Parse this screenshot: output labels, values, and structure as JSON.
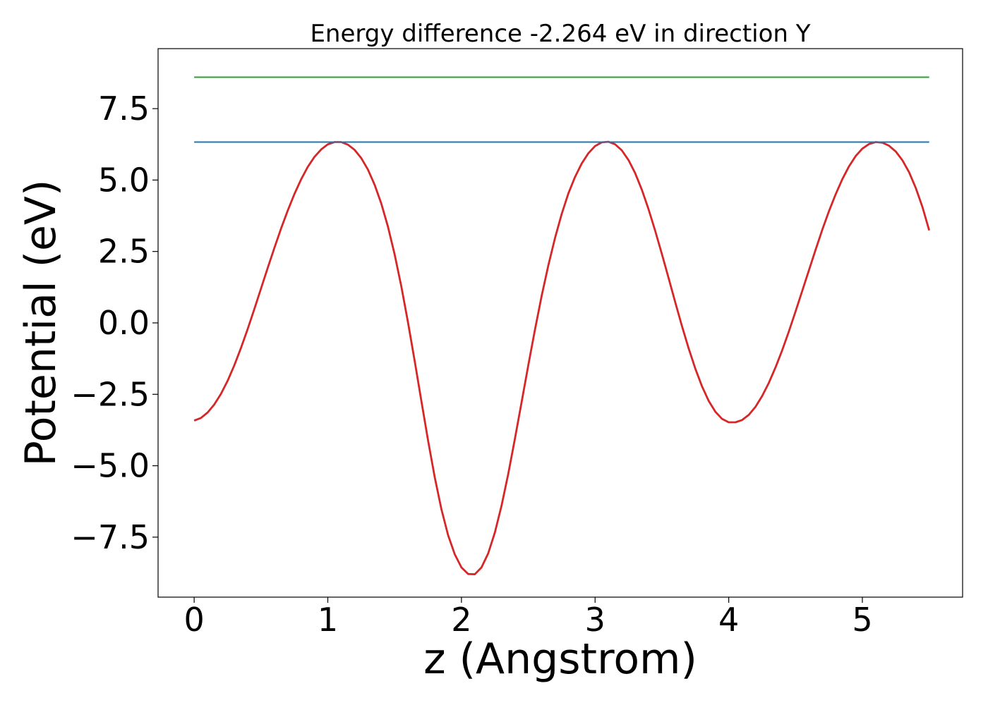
{
  "chart_data": {
    "type": "line",
    "title": "Energy difference -2.264 eV in direction Y",
    "xlabel": "z (Angstrom)",
    "ylabel": "Potential (eV)",
    "xlim": [
      -0.27,
      5.75
    ],
    "ylim": [
      -9.6,
      9.6
    ],
    "x_ticks": [
      0,
      1,
      2,
      3,
      4,
      5
    ],
    "x_tick_labels": [
      "0",
      "1",
      "2",
      "3",
      "4",
      "5"
    ],
    "y_ticks": [
      7.5,
      5.0,
      2.5,
      0.0,
      -2.5,
      -5.0,
      -7.5
    ],
    "y_tick_labels": [
      "7.5",
      "5.0",
      "2.5",
      "0.0",
      "−2.5",
      "−5.0",
      "−7.5"
    ],
    "grid": false,
    "legend": "none",
    "series": [
      {
        "color": "#d62728",
        "x": [
          0.0,
          0.05,
          0.1,
          0.15,
          0.2,
          0.25,
          0.3,
          0.35,
          0.4,
          0.45,
          0.5,
          0.55,
          0.6,
          0.65,
          0.7,
          0.75,
          0.8,
          0.85,
          0.9,
          0.95,
          1.0,
          1.05,
          1.1,
          1.15,
          1.2,
          1.25,
          1.3,
          1.35,
          1.4,
          1.45,
          1.5,
          1.55,
          1.6,
          1.65,
          1.7,
          1.75,
          1.8,
          1.85,
          1.9,
          1.95,
          2.0,
          2.05,
          2.1,
          2.15,
          2.2,
          2.25,
          2.3,
          2.35,
          2.4,
          2.45,
          2.5,
          2.55,
          2.6,
          2.65,
          2.7,
          2.75,
          2.8,
          2.85,
          2.9,
          2.95,
          3.0,
          3.05,
          3.1,
          3.15,
          3.2,
          3.25,
          3.3,
          3.35,
          3.4,
          3.45,
          3.5,
          3.55,
          3.6,
          3.65,
          3.7,
          3.75,
          3.8,
          3.85,
          3.9,
          3.95,
          4.0,
          4.05,
          4.1,
          4.15,
          4.2,
          4.25,
          4.3,
          4.35,
          4.4,
          4.45,
          4.5,
          4.55,
          4.6,
          4.65,
          4.7,
          4.75,
          4.8,
          4.85,
          4.9,
          4.95,
          5.0,
          5.05,
          5.1,
          5.15,
          5.2,
          5.25,
          5.3,
          5.35,
          5.4,
          5.45,
          5.5
        ],
        "y": [
          -3.42,
          -3.33,
          -3.14,
          -2.86,
          -2.49,
          -2.03,
          -1.49,
          -0.88,
          -0.22,
          0.48,
          1.2,
          1.92,
          2.62,
          3.3,
          3.93,
          4.51,
          5.02,
          5.46,
          5.81,
          6.07,
          6.25,
          6.33,
          6.33,
          6.24,
          6.06,
          5.77,
          5.37,
          4.84,
          4.18,
          3.37,
          2.4,
          1.28,
          0.02,
          -1.33,
          -2.73,
          -4.11,
          -5.4,
          -6.52,
          -7.43,
          -8.1,
          -8.56,
          -8.79,
          -8.8,
          -8.56,
          -8.07,
          -7.34,
          -6.4,
          -5.29,
          -4.06,
          -2.78,
          -1.49,
          -0.24,
          0.94,
          2.01,
          2.97,
          3.81,
          4.53,
          5.11,
          5.58,
          5.94,
          6.19,
          6.32,
          6.34,
          6.25,
          6.04,
          5.7,
          5.24,
          4.66,
          3.98,
          3.22,
          2.41,
          1.57,
          0.72,
          -0.11,
          -0.89,
          -1.6,
          -2.22,
          -2.73,
          -3.11,
          -3.36,
          -3.48,
          -3.48,
          -3.4,
          -3.22,
          -2.94,
          -2.56,
          -2.1,
          -1.56,
          -0.96,
          -0.3,
          0.4,
          1.12,
          1.84,
          2.56,
          3.26,
          3.91,
          4.5,
          5.03,
          5.48,
          5.84,
          6.1,
          6.26,
          6.33,
          6.31,
          6.2,
          6.0,
          5.69,
          5.27,
          4.72,
          4.05,
          3.24
        ]
      },
      {
        "color": "#1f77b4",
        "x": [
          0.0,
          5.5
        ],
        "y": [
          6.33,
          6.33
        ]
      },
      {
        "color": "#2ca02c",
        "x": [
          0.0,
          5.5
        ],
        "y": [
          8.6,
          8.6
        ]
      }
    ]
  }
}
